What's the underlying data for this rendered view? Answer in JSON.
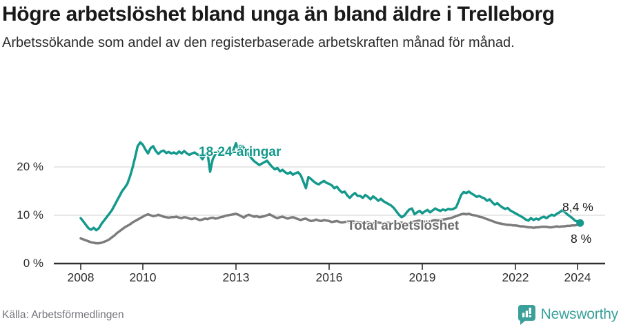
{
  "header": {
    "title": "Högre arbetslöshet bland unga än bland äldre i Trelleborg",
    "subtitle": "Arbetssökande som andel av den registerbaserade arbetskraften månad för månad."
  },
  "chart_data": {
    "type": "line",
    "unit": "%",
    "x_start": "2008-01",
    "x_end": "2024-02",
    "frequency": "monthly",
    "ylim": [
      0,
      27
    ],
    "grid": "horizontal",
    "y_ticks": [
      {
        "value": 0,
        "label": "0 %"
      },
      {
        "value": 10,
        "label": "10 %"
      },
      {
        "value": 20,
        "label": "20 %"
      }
    ],
    "x_ticks": [
      {
        "year": 2008,
        "label": "2008"
      },
      {
        "year": 2010,
        "label": "2010"
      },
      {
        "year": 2013,
        "label": "2013"
      },
      {
        "year": 2016,
        "label": "2016"
      },
      {
        "year": 2019,
        "label": "2019"
      },
      {
        "year": 2022,
        "label": "2022"
      },
      {
        "year": 2024,
        "label": "2024"
      }
    ],
    "series": [
      {
        "name": "18-24-åringar",
        "color": "#14998c",
        "end_label": "8,4 %",
        "end_value": 8.4,
        "end_dot": true,
        "values": [
          9.4,
          8.7,
          8.0,
          7.3,
          7.0,
          7.4,
          6.9,
          7.3,
          8.2,
          8.9,
          9.6,
          10.3,
          11.0,
          12.0,
          13.0,
          14.0,
          15.0,
          15.7,
          16.5,
          18.0,
          19.8,
          22.0,
          24.3,
          25.1,
          24.6,
          23.6,
          22.8,
          23.9,
          24.3,
          23.3,
          22.7,
          23.2,
          23.4,
          22.9,
          23.1,
          22.8,
          23.0,
          22.7,
          23.2,
          22.8,
          23.3,
          22.8,
          22.5,
          22.8,
          23.0,
          22.6,
          22.4,
          21.6,
          22.4,
          22.9,
          19.0,
          21.6,
          22.6,
          23.2,
          22.8,
          22.5,
          22.7,
          22.9,
          23.1,
          23.5,
          24.9,
          23.4,
          24.5,
          24.0,
          23.2,
          22.5,
          21.8,
          21.2,
          20.8,
          20.4,
          20.7,
          21.0,
          21.3,
          20.6,
          20.0,
          19.5,
          19.8,
          19.1,
          19.4,
          18.9,
          18.6,
          18.9,
          18.4,
          18.7,
          18.9,
          18.3,
          17.0,
          15.6,
          17.9,
          17.5,
          17.0,
          16.6,
          16.4,
          16.8,
          17.1,
          16.7,
          16.5,
          16.2,
          15.6,
          15.9,
          15.2,
          14.7,
          14.9,
          14.1,
          13.6,
          14.2,
          14.6,
          14.0,
          14.0,
          13.6,
          14.2,
          13.8,
          13.3,
          13.9,
          13.5,
          13.0,
          13.4,
          12.9,
          12.6,
          12.3,
          12.0,
          11.5,
          10.8,
          10.1,
          9.6,
          9.9,
          10.6,
          11.2,
          11.4,
          10.2,
          10.6,
          10.9,
          10.4,
          10.8,
          11.1,
          10.6,
          11.0,
          11.4,
          11.1,
          10.9,
          11.2,
          11.0,
          11.3,
          11.2,
          11.3,
          11.6,
          12.8,
          14.2,
          14.8,
          14.6,
          14.9,
          14.5,
          14.2,
          13.8,
          14.0,
          13.7,
          13.5,
          13.0,
          13.3,
          12.7,
          12.2,
          12.5,
          12.0,
          11.6,
          11.3,
          11.5,
          11.0,
          10.7,
          10.4,
          10.1,
          9.8,
          9.5,
          9.1,
          8.9,
          9.4,
          9.0,
          9.3,
          9.1,
          9.5,
          9.7,
          9.4,
          9.8,
          10.1,
          9.9,
          10.3,
          10.6,
          11.0,
          10.7,
          10.2,
          9.8,
          9.4,
          8.9,
          8.7,
          8.4
        ]
      },
      {
        "name": "Total arbetslöshet",
        "color": "#7c7c7c",
        "end_label": "8 %",
        "end_value": 8.0,
        "end_dot": false,
        "values": [
          5.2,
          5.0,
          4.8,
          4.6,
          4.4,
          4.3,
          4.2,
          4.2,
          4.3,
          4.5,
          4.7,
          5.0,
          5.4,
          5.8,
          6.3,
          6.7,
          7.1,
          7.5,
          7.8,
          8.1,
          8.5,
          8.8,
          9.1,
          9.4,
          9.7,
          10.0,
          10.2,
          10.0,
          9.8,
          9.9,
          10.1,
          9.9,
          9.7,
          9.6,
          9.5,
          9.6,
          9.6,
          9.7,
          9.5,
          9.4,
          9.6,
          9.5,
          9.3,
          9.2,
          9.4,
          9.2,
          9.0,
          9.1,
          9.3,
          9.2,
          9.4,
          9.5,
          9.3,
          9.4,
          9.6,
          9.7,
          9.9,
          10.0,
          10.1,
          10.2,
          10.3,
          10.1,
          9.8,
          9.5,
          9.9,
          10.1,
          9.9,
          9.7,
          9.8,
          9.6,
          9.7,
          9.8,
          10.0,
          10.2,
          9.9,
          9.6,
          9.4,
          9.6,
          9.7,
          9.5,
          9.3,
          9.5,
          9.6,
          9.4,
          9.2,
          9.0,
          9.2,
          9.3,
          9.0,
          8.8,
          8.9,
          9.1,
          8.9,
          8.8,
          9.0,
          8.9,
          8.8,
          8.6,
          8.7,
          8.8,
          8.6,
          8.5,
          8.6,
          8.7,
          8.5,
          8.4,
          8.5,
          8.6,
          8.5,
          8.4,
          8.5,
          8.6,
          8.4,
          8.3,
          8.4,
          8.5,
          8.4,
          8.3,
          8.4,
          8.5,
          8.4,
          8.3,
          8.2,
          8.4,
          8.5,
          8.3,
          8.2,
          8.4,
          8.6,
          8.7,
          8.8,
          8.9,
          8.6,
          8.7,
          8.8,
          8.7,
          8.9,
          9.0,
          8.9,
          9.0,
          9.1,
          9.2,
          9.3,
          9.4,
          9.6,
          9.8,
          10.0,
          10.2,
          10.3,
          10.2,
          10.3,
          10.1,
          10.0,
          9.9,
          9.7,
          9.6,
          9.4,
          9.2,
          9.0,
          8.8,
          8.6,
          8.4,
          8.3,
          8.2,
          8.1,
          8.0,
          8.0,
          7.9,
          7.9,
          7.8,
          7.7,
          7.7,
          7.6,
          7.5,
          7.5,
          7.4,
          7.5,
          7.5,
          7.6,
          7.6,
          7.6,
          7.5,
          7.5,
          7.6,
          7.7,
          7.6,
          7.7,
          7.7,
          7.8,
          7.8,
          7.9,
          7.9,
          8.0,
          8.0
        ]
      }
    ],
    "colors": {
      "grid": "#d9d9d9",
      "axis": "#2e2e2e",
      "accent_teal": "#14998c",
      "line_gray": "#7c7c7c"
    }
  },
  "footer": {
    "source": "Källa: Arbetsförmedlingen",
    "brand": "Newsworthy"
  }
}
